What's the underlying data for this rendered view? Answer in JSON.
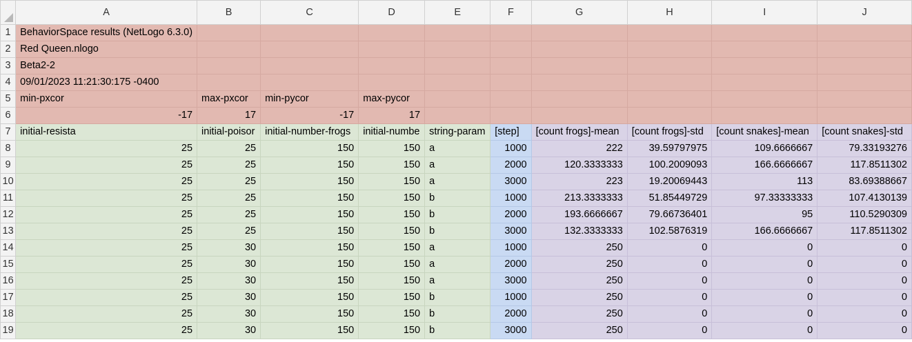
{
  "columns": [
    "A",
    "B",
    "C",
    "D",
    "E",
    "F",
    "G",
    "H",
    "I",
    "J"
  ],
  "row_numbers": [
    "1",
    "2",
    "3",
    "4",
    "5",
    "6",
    "7",
    "8",
    "9",
    "10",
    "11",
    "12",
    "13",
    "14",
    "15",
    "16",
    "17",
    "18",
    "19"
  ],
  "meta": {
    "line1": "BehaviorSpace results (NetLogo 6.3.0)",
    "line2": "Red Queen.nlogo",
    "line3": "Beta2-2",
    "line4": "09/01/2023 11:21:30:175 -0400",
    "labels": [
      "min-pxcor",
      "max-pxcor",
      "min-pycor",
      "max-pycor"
    ],
    "values": [
      "-17",
      "17",
      "-17",
      "17"
    ]
  },
  "headers": [
    "initial-resista",
    "initial-poisor",
    "initial-number-frogs",
    "initial-numbe",
    "string-param",
    "[step]",
    "[count frogs]-mean",
    "[count frogs]-std",
    "[count snakes]-mean",
    "[count snakes]-std"
  ],
  "rows": [
    [
      "25",
      "25",
      "150",
      "150",
      "a",
      "1000",
      "222",
      "39.59797975",
      "109.6666667",
      "79.33193276"
    ],
    [
      "25",
      "25",
      "150",
      "150",
      "a",
      "2000",
      "120.3333333",
      "100.2009093",
      "166.6666667",
      "117.8511302"
    ],
    [
      "25",
      "25",
      "150",
      "150",
      "a",
      "3000",
      "223",
      "19.20069443",
      "113",
      "83.69388667"
    ],
    [
      "25",
      "25",
      "150",
      "150",
      "b",
      "1000",
      "213.3333333",
      "51.85449729",
      "97.33333333",
      "107.4130139"
    ],
    [
      "25",
      "25",
      "150",
      "150",
      "b",
      "2000",
      "193.6666667",
      "79.66736401",
      "95",
      "110.5290309"
    ],
    [
      "25",
      "25",
      "150",
      "150",
      "b",
      "3000",
      "132.3333333",
      "102.5876319",
      "166.6666667",
      "117.8511302"
    ],
    [
      "25",
      "30",
      "150",
      "150",
      "a",
      "1000",
      "250",
      "0",
      "0",
      "0"
    ],
    [
      "25",
      "30",
      "150",
      "150",
      "a",
      "2000",
      "250",
      "0",
      "0",
      "0"
    ],
    [
      "25",
      "30",
      "150",
      "150",
      "a",
      "3000",
      "250",
      "0",
      "0",
      "0"
    ],
    [
      "25",
      "30",
      "150",
      "150",
      "b",
      "1000",
      "250",
      "0",
      "0",
      "0"
    ],
    [
      "25",
      "30",
      "150",
      "150",
      "b",
      "2000",
      "250",
      "0",
      "0",
      "0"
    ],
    [
      "25",
      "30",
      "150",
      "150",
      "b",
      "3000",
      "250",
      "0",
      "0",
      "0"
    ]
  ],
  "colors": {
    "metadata_fill": "#e2b9b1",
    "parameter_fill": "#dce7d5",
    "step_fill": "#c9daf3",
    "metric_fill": "#d9d3e6"
  }
}
